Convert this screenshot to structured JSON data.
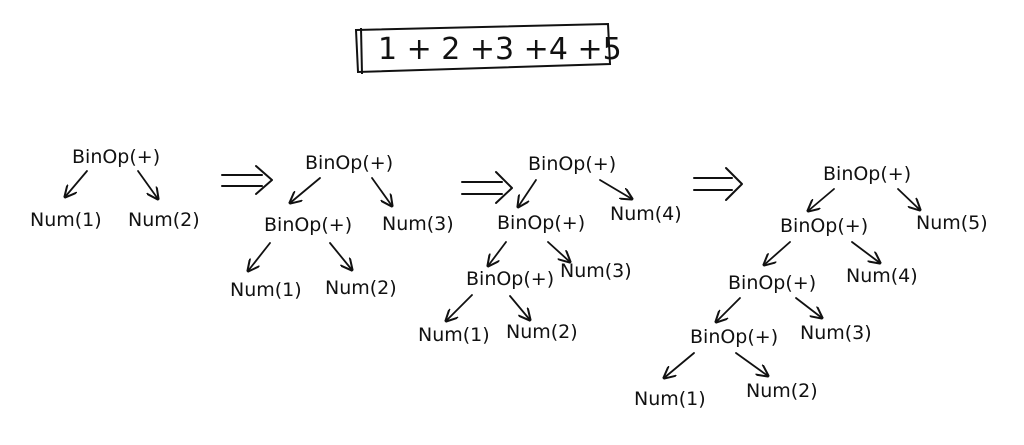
{
  "title": {
    "expression": "1 + 2 +3 +4 +5"
  },
  "trees": [
    {
      "nodes": {
        "root": "BinOp(+)",
        "left": "Num(1)",
        "right": "Num(2)"
      }
    },
    {
      "nodes": {
        "root": "BinOp(+)",
        "inner": "BinOp(+)",
        "right": "Num(3)",
        "inner_left": "Num(1)",
        "inner_right": "Num(2)"
      }
    },
    {
      "nodes": {
        "root": "BinOp(+)",
        "inner": "BinOp(+)",
        "right": "Num(4)",
        "inner2": "BinOp(+)",
        "inner_right": "Num(3)",
        "inner2_left": "Num(1)",
        "inner2_right": "Num(2)"
      }
    },
    {
      "nodes": {
        "root": "BinOp(+)",
        "inner": "BinOp(+)",
        "right": "Num(5)",
        "inner2": "BinOp(+)",
        "inner_right": "Num(4)",
        "inner3": "BinOp(+)",
        "inner2_right": "Num(3)",
        "inner3_left": "Num(1)",
        "inner3_right": "Num(2)"
      }
    }
  ]
}
